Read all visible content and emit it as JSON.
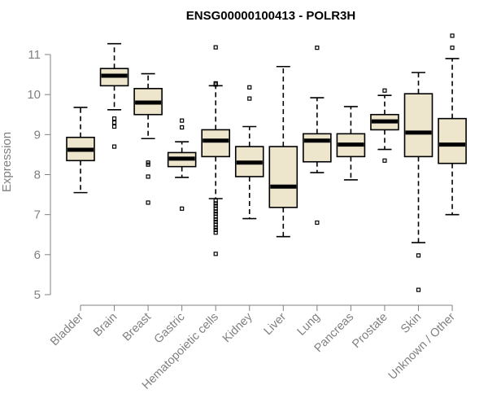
{
  "chart_data": {
    "type": "boxplot",
    "title": "ENSG00000100413 - POLR3H",
    "xlabel": "",
    "ylabel": "Expression",
    "ylim": [
      5,
      11.2
    ],
    "yticks": [
      5,
      6,
      7,
      8,
      9,
      10,
      11
    ],
    "categories": [
      "Bladder",
      "Brain",
      "Breast",
      "Gastric",
      "Hematopoietic cells",
      "Kidney",
      "Liver",
      "Lung",
      "Pancreas",
      "Prostate",
      "Skin",
      "Unknown / Other"
    ],
    "series": [
      {
        "name": "Bladder",
        "whisker_low": 7.55,
        "q1": 8.35,
        "median": 8.62,
        "q3": 8.93,
        "whisker_high": 9.68,
        "outliers": []
      },
      {
        "name": "Brain",
        "whisker_low": 9.62,
        "q1": 10.22,
        "median": 10.47,
        "q3": 10.65,
        "whisker_high": 11.27,
        "outliers": [
          8.7,
          9.2,
          9.3,
          9.4
        ]
      },
      {
        "name": "Breast",
        "whisker_low": 8.9,
        "q1": 9.5,
        "median": 9.8,
        "q3": 10.15,
        "whisker_high": 10.52,
        "outliers": [
          7.3,
          7.95,
          8.25,
          8.3
        ]
      },
      {
        "name": "Gastric",
        "whisker_low": 7.93,
        "q1": 8.2,
        "median": 8.4,
        "q3": 8.55,
        "whisker_high": 8.82,
        "outliers": [
          7.15,
          9.18,
          9.35
        ]
      },
      {
        "name": "Hematopoietic cells",
        "whisker_low": 7.4,
        "q1": 8.45,
        "median": 8.85,
        "q3": 9.12,
        "whisker_high": 10.22,
        "outliers": [
          6.02,
          6.55,
          6.62,
          6.68,
          6.75,
          6.82,
          6.88,
          6.95,
          7.02,
          7.08,
          7.15,
          7.22,
          7.28,
          7.35,
          10.25,
          10.28,
          11.18
        ]
      },
      {
        "name": "Kidney",
        "whisker_low": 6.9,
        "q1": 7.95,
        "median": 8.3,
        "q3": 8.7,
        "whisker_high": 9.2,
        "outliers": [
          9.9,
          10.18
        ]
      },
      {
        "name": "Liver",
        "whisker_low": 6.45,
        "q1": 7.18,
        "median": 7.7,
        "q3": 8.7,
        "whisker_high": 10.7,
        "outliers": []
      },
      {
        "name": "Lung",
        "whisker_low": 8.05,
        "q1": 8.32,
        "median": 8.85,
        "q3": 9.02,
        "whisker_high": 9.92,
        "outliers": [
          6.8,
          11.17
        ]
      },
      {
        "name": "Pancreas",
        "whisker_low": 7.87,
        "q1": 8.45,
        "median": 8.75,
        "q3": 9.02,
        "whisker_high": 9.7,
        "outliers": []
      },
      {
        "name": "Prostate",
        "whisker_low": 8.63,
        "q1": 9.12,
        "median": 9.33,
        "q3": 9.5,
        "whisker_high": 9.98,
        "outliers": [
          8.35,
          10.1
        ]
      },
      {
        "name": "Skin",
        "whisker_low": 6.3,
        "q1": 8.45,
        "median": 9.05,
        "q3": 10.02,
        "whisker_high": 10.55,
        "outliers": [
          5.12,
          5.98
        ]
      },
      {
        "name": "Unknown / Other",
        "whisker_low": 7.0,
        "q1": 8.28,
        "median": 8.75,
        "q3": 9.4,
        "whisker_high": 10.9,
        "outliers": [
          11.17,
          11.47
        ]
      }
    ]
  }
}
